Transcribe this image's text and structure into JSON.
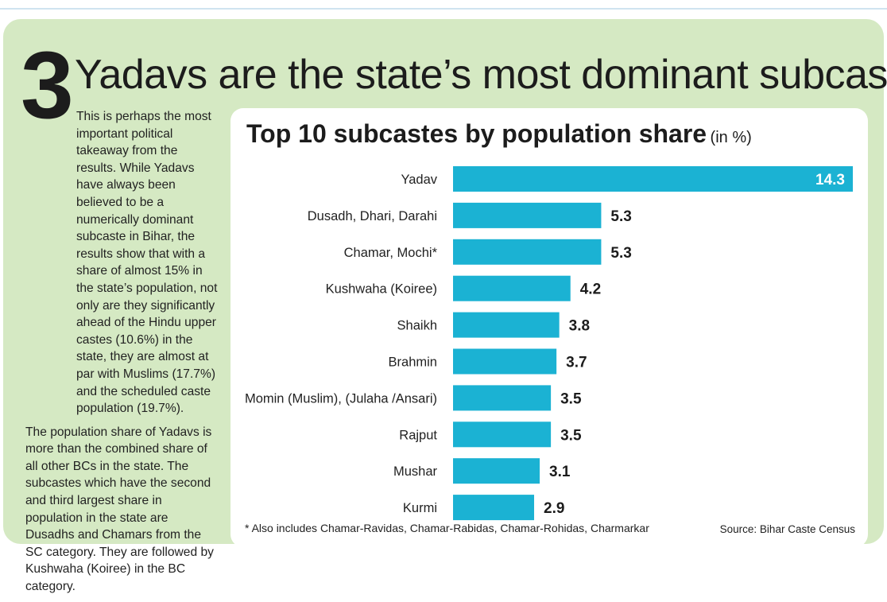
{
  "section_number": "3",
  "headline": "Yadavs are the state’s most dominant subcaste",
  "sidebar": {
    "paragraphs": [
      "This is perhaps the most important political takeaway from the results. While Yadavs have always been believed to be a numerically dominant subcaste in Bihar, the results show that with a share of almost 15% in the state’s population, not only are they significantly ahead of the Hindu upper castes (10.6%) in the state, they are almost at par with Muslims (17.7%) and the scheduled caste population (19.7%).",
      "The population share of Yadavs is more than the combined share of all other BCs in the state. The subcastes which have the second and third largest share in population in the state are Dusadhs and Chamars from the SC category. They are followed by Kushwaha (Koiree) in the BC category."
    ]
  },
  "chart_data": {
    "type": "bar",
    "orientation": "horizontal",
    "title": "Top 10 subcastes by population share",
    "title_unit": "(in %)",
    "categories": [
      "Yadav",
      "Dusadh, Dhari, Darahi",
      "Chamar, Mochi*",
      "Kushwaha (Koiree)",
      "Shaikh",
      "Brahmin",
      "Momin (Muslim), (Julaha /Ansari)",
      "Rajput",
      "Mushar",
      "Kurmi"
    ],
    "values": [
      14.3,
      5.3,
      5.3,
      4.2,
      3.8,
      3.7,
      3.5,
      3.5,
      3.1,
      2.9
    ],
    "value_labels": [
      "14.3",
      "5.3",
      "5.3",
      "4.2",
      "3.8",
      "3.7",
      "3.5",
      "3.5",
      "3.1",
      "2.9"
    ],
    "xlim": [
      0,
      14.3
    ],
    "bar_color": "#1bb2d3",
    "grid": false,
    "legend": "none",
    "footnote": "* Also includes Chamar-Ravidas, Chamar-Rabidas, Chamar-Rohidas, Charmarkar",
    "source": "Source: Bihar Caste Census"
  },
  "colors": {
    "panel_background": "#d5e9c3",
    "card_background": "#ffffff",
    "text": "#1c1c1c"
  }
}
